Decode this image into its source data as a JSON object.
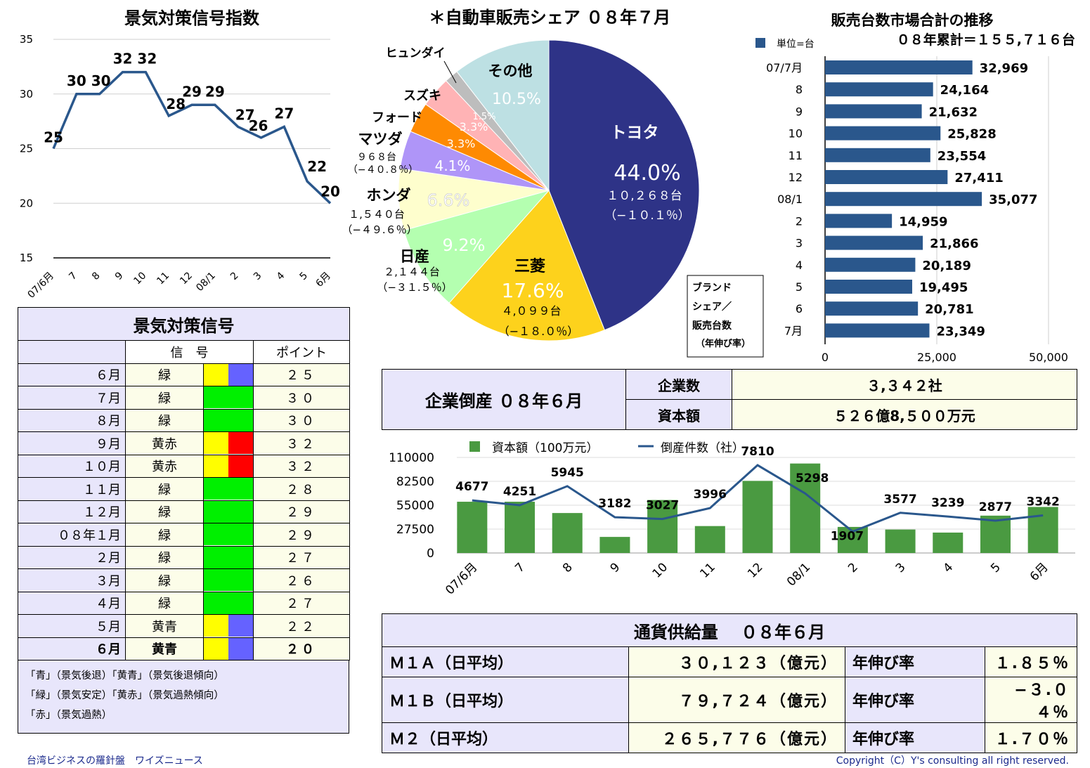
{
  "footer": {
    "left": "台湾ビジネスの羅針盤　ワイズニュース",
    "right": "Copyright（C）Y's consulting all right reserved."
  },
  "signal_index_chart": {
    "chart_data": {
      "type": "line",
      "title": "景気対策信号指数",
      "categories": [
        "07/6月",
        "7",
        "8",
        "9",
        "10",
        "11",
        "12",
        "08/1",
        "2",
        "3",
        "4",
        "5",
        "6月"
      ],
      "values": [
        25,
        30,
        30,
        32,
        32,
        28,
        29,
        29,
        27,
        26,
        27,
        22,
        20
      ],
      "ylim": [
        15,
        35
      ],
      "yticks": [
        "35",
        "30",
        "25",
        "20",
        "15"
      ],
      "grid": true,
      "color": "#2a578c"
    }
  },
  "pie_chart": {
    "chart_data": {
      "type": "pie",
      "title": "＊自動車販売シェア ０８年７月",
      "slices": [
        {
          "name": "トヨタ",
          "value": 44.0,
          "pct": "44.0%",
          "units": "１０,２６８台",
          "growth": "（−１０.１％）",
          "color": "#2e3387"
        },
        {
          "name": "三菱",
          "value": 17.6,
          "pct": "17.6%",
          "units": "４,０９９台",
          "growth": "（−１８.０％）",
          "color": "#fdd21c"
        },
        {
          "name": "日産",
          "value": 9.2,
          "pct": "9.2%",
          "units": "２,１４４台",
          "growth": "（−３１.５％）",
          "color": "#b4ffb0"
        },
        {
          "name": "ホンダ",
          "value": 6.6,
          "pct": "6.6%",
          "units": "１,５４０台",
          "growth": "（−４９.６％）",
          "color": "#fefecd"
        },
        {
          "name": "マツダ",
          "value": 4.1,
          "pct": "4.1%",
          "units": "９６８台",
          "growth": "（−４０.８％）",
          "color": "#af95f8"
        },
        {
          "name": "フォード",
          "value": 3.3,
          "pct": "3.3%",
          "units": "",
          "growth": "",
          "color": "#fe8a02"
        },
        {
          "name": "スズキ",
          "value": 3.3,
          "pct": "3.3%",
          "units": "",
          "growth": "",
          "color": "#ffb3b5"
        },
        {
          "name": "ヒュンダイ",
          "value": 1.5,
          "pct": "1.5%",
          "units": "",
          "growth": "",
          "color": "#bdbdbd"
        },
        {
          "name": "その他",
          "value": 10.5,
          "pct": "10.5%",
          "units": "",
          "growth": "",
          "color": "#bde0e3"
        }
      ],
      "legend_note": [
        "ブランド",
        "シェア／",
        "販売台数",
        "（年伸び率）"
      ]
    }
  },
  "sales_bar_chart": {
    "chart_data": {
      "type": "bar",
      "title": "販売台数市場合計の推移",
      "legend": "単位=台",
      "subtitle": "０８年累計＝１５５,７１６台",
      "categories": [
        "07/7月",
        "8",
        "9",
        "10",
        "11",
        "12",
        "08/1",
        "2",
        "3",
        "4",
        "5",
        "6",
        "7月"
      ],
      "values": [
        32969,
        24164,
        21632,
        25828,
        23554,
        27411,
        35077,
        14959,
        21866,
        20189,
        19495,
        20781,
        23349
      ],
      "value_labels": [
        "32,969",
        "24,164",
        "21,632",
        "25,828",
        "23,554",
        "27,411",
        "35,077",
        "14,959",
        "21,866",
        "20,189",
        "19,495",
        "20,781",
        "23,349"
      ],
      "xlim": [
        0,
        50000
      ],
      "xticks": [
        "0",
        "25,000",
        "50,000"
      ],
      "color": "#2a578c"
    }
  },
  "signal_table": {
    "title": "景気対策信号",
    "header_signal": "信　号",
    "header_point": "ポイント",
    "rows": [
      {
        "month": "６月",
        "signal": "緑",
        "colors": [
          "#fffe00",
          "#6562ff"
        ],
        "point": "２５",
        "bold": false
      },
      {
        "month": "７月",
        "signal": "緑",
        "colors": [
          "#00f000"
        ],
        "point": "３０",
        "bold": false
      },
      {
        "month": "８月",
        "signal": "緑",
        "colors": [
          "#00f000"
        ],
        "point": "３０",
        "bold": false
      },
      {
        "month": "９月",
        "signal": "黄赤",
        "colors": [
          "#fffe00",
          "#ff0000"
        ],
        "point": "３２",
        "bold": false
      },
      {
        "month": "１０月",
        "signal": "黄赤",
        "colors": [
          "#fffe00",
          "#ff0000"
        ],
        "point": "３２",
        "bold": false
      },
      {
        "month": "１１月",
        "signal": "緑",
        "colors": [
          "#00f000"
        ],
        "point": "２８",
        "bold": false
      },
      {
        "month": "１２月",
        "signal": "緑",
        "colors": [
          "#00f000"
        ],
        "point": "２９",
        "bold": false
      },
      {
        "month": "０８年１月",
        "signal": "緑",
        "colors": [
          "#00f000"
        ],
        "point": "２９",
        "bold": false
      },
      {
        "month": "２月",
        "signal": "緑",
        "colors": [
          "#00f000"
        ],
        "point": "２７",
        "bold": false
      },
      {
        "month": "３月",
        "signal": "緑",
        "colors": [
          "#00f000"
        ],
        "point": "２６",
        "bold": false
      },
      {
        "month": "４月",
        "signal": "緑",
        "colors": [
          "#00f000"
        ],
        "point": "２７",
        "bold": false
      },
      {
        "month": "５月",
        "signal": "黄青",
        "colors": [
          "#fffe00",
          "#6562ff"
        ],
        "point": "２２",
        "bold": false
      },
      {
        "month": "６月",
        "signal": "黄青",
        "colors": [
          "#fffe00",
          "#6562ff"
        ],
        "point": "２０",
        "bold": true
      }
    ],
    "legend": [
      "「青」（景気後退）「黄青」（景気後退傾向）",
      "「緑」（景気安定）「黄赤」（景気過熱傾向）",
      "「赤」（景気過熱）"
    ]
  },
  "bankruptcy": {
    "title": "企業倒産 ０８年６月",
    "rows": [
      {
        "label": "企業数",
        "value": "３,３４２社"
      },
      {
        "label": "資本額",
        "value": "５２６億8,５００万元"
      }
    ]
  },
  "bankruptcy_chart": {
    "chart_data": {
      "type": "bar",
      "categories": [
        "07/6月",
        "7",
        "8",
        "9",
        "10",
        "11",
        "12",
        "08/1",
        "2",
        "3",
        "4",
        "5",
        "6月"
      ],
      "series": [
        {
          "name": "資本額（100万元）",
          "type": "bar",
          "values": [
            59000,
            59000,
            46000,
            18500,
            61000,
            31000,
            83000,
            103000,
            30000,
            27000,
            23500,
            43000,
            53000
          ],
          "color": "#4a9a41"
        },
        {
          "name": "倒産件数（社）",
          "type": "line",
          "values": [
            4677,
            4251,
            5945,
            3182,
            3027,
            3996,
            7810,
            5298,
            1907,
            3577,
            3239,
            2877,
            3342
          ],
          "color": "#2a578c"
        }
      ],
      "yticks": [
        "110000",
        "82500",
        "55000",
        "27500",
        "0"
      ],
      "ylim": [
        0,
        110000
      ],
      "ylim_line": [
        0,
        8500
      ]
    }
  },
  "money_supply": {
    "title": "通貨供給量　 ０８年６月",
    "rows": [
      {
        "label": "Ｍ１Ａ（日平均）",
        "value": "３０,１２３（億元）",
        "rate_label": "年伸び率",
        "rate": "１.８５％"
      },
      {
        "label": "Ｍ１Ｂ（日平均）",
        "value": "７９,７２４（億元）",
        "rate_label": "年伸び率",
        "rate": "−３.０４％"
      },
      {
        "label": "Ｍ２（日平均）",
        "value": "２６５,７７６（億元）",
        "rate_label": "年伸び率",
        "rate": "１.７０％"
      }
    ]
  }
}
